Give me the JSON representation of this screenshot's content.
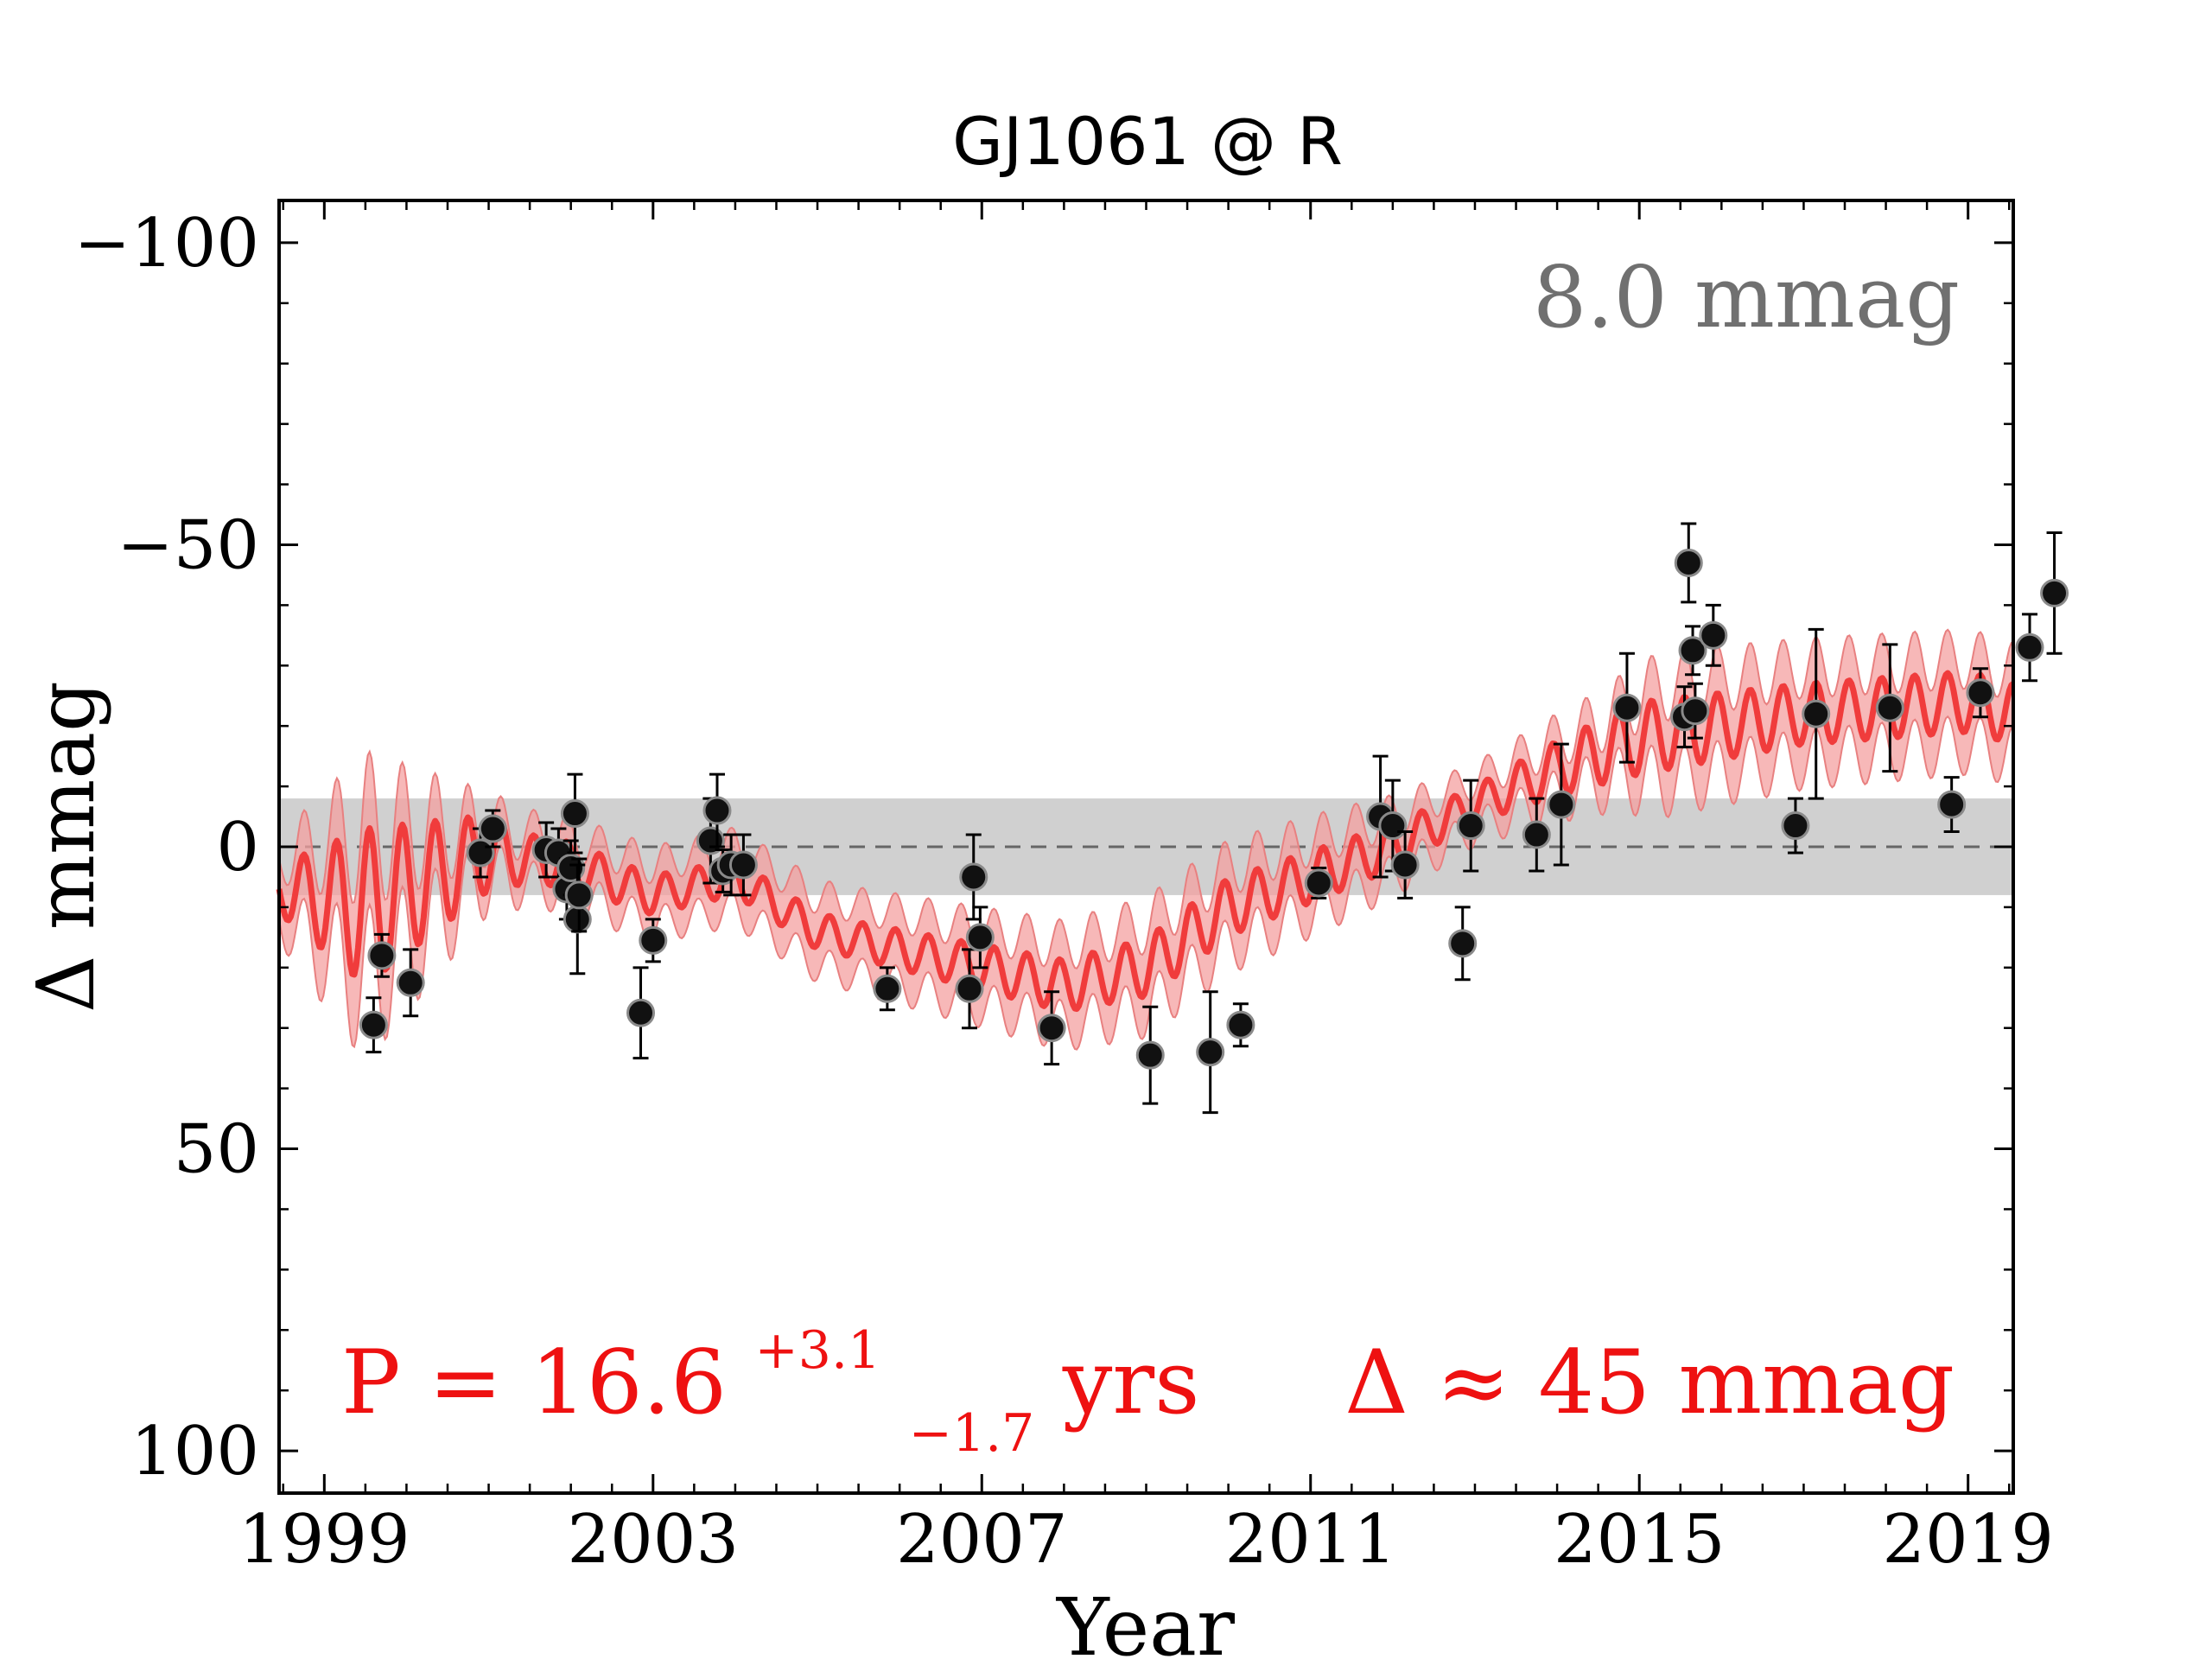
{
  "colors": {
    "model_line": "#f03c3c",
    "model_band": "#f4a0a0",
    "model_band_edge": "#e88080",
    "noise_band": "#d0d0d0",
    "points": "#111111",
    "noise_label": "#707070",
    "annotation": "#ee1111"
  },
  "chart_data": {
    "type": "scatter",
    "title": "GJ1061 @ R",
    "xlabel": "Year",
    "ylabel": "Δ  mmag",
    "xlim": [
      1998.45,
      2019.55
    ],
    "ylim": [
      -107,
      107
    ],
    "y_inverted": true,
    "x_ticks": [
      1999,
      2003,
      2007,
      2011,
      2015,
      2019
    ],
    "x_tick_labels": [
      "1999",
      "2003",
      "2007",
      "2011",
      "2015",
      "2019"
    ],
    "y_ticks": [
      -100,
      -50,
      0,
      50,
      100
    ],
    "y_tick_labels": [
      "−100",
      "−50",
      "0",
      "50",
      "100"
    ],
    "noise_level": 8.0,
    "noise_label": "8.0 mmag",
    "period_label": {
      "main": "P = 16.6",
      "sup": "+3.1",
      "sub": "−1.7",
      "unit": " yrs"
    },
    "amplitude_label": "Δ ≈ 45 mmag",
    "model": {
      "trend_knots": [
        [
          1998.45,
          7
        ],
        [
          1999.5,
          10
        ],
        [
          2001.0,
          1
        ],
        [
          2002.0,
          3
        ],
        [
          2003.0,
          8
        ],
        [
          2004.0,
          5
        ],
        [
          2005.0,
          14
        ],
        [
          2006.0,
          17
        ],
        [
          2007.0,
          20
        ],
        [
          2008.0,
          23
        ],
        [
          2009.0,
          20
        ],
        [
          2010.0,
          10
        ],
        [
          2011.0,
          5
        ],
        [
          2012.0,
          0
        ],
        [
          2013.0,
          -7
        ],
        [
          2014.0,
          -13
        ],
        [
          2015.0,
          -18
        ],
        [
          2016.0,
          -20
        ],
        [
          2017.0,
          -22
        ],
        [
          2018.0,
          -23
        ],
        [
          2019.0,
          -24
        ],
        [
          2019.55,
          -22
        ]
      ],
      "wiggle_amplitude_knots": [
        [
          1998.45,
          4
        ],
        [
          1999.5,
          13
        ],
        [
          2001.5,
          4
        ],
        [
          2003.5,
          3
        ],
        [
          2005.5,
          3
        ],
        [
          2007.5,
          4
        ],
        [
          2009.5,
          5
        ],
        [
          2011.5,
          4
        ],
        [
          2013.0,
          3
        ],
        [
          2015.0,
          6
        ],
        [
          2017.0,
          5
        ],
        [
          2019.55,
          5
        ]
      ],
      "wiggle_period_years": 0.4,
      "band_halfwidth_knots": [
        [
          1998.45,
          5
        ],
        [
          1999.5,
          13
        ],
        [
          2001.0,
          4
        ],
        [
          2003.0,
          5
        ],
        [
          2006.0,
          6
        ],
        [
          2009.0,
          7
        ],
        [
          2011.0,
          6
        ],
        [
          2013.0,
          4
        ],
        [
          2014.5,
          5
        ],
        [
          2015.3,
          8
        ],
        [
          2019.55,
          7
        ]
      ]
    },
    "series": [
      {
        "points": [
          {
            "x": 1999.6,
            "y": 29.5,
            "err": 4.5
          },
          {
            "x": 1999.7,
            "y": 18.0,
            "err": 3.5
          },
          {
            "x": 2000.05,
            "y": 22.5,
            "err": 5.5
          },
          {
            "x": 2000.9,
            "y": 1.0,
            "err": 4.0
          },
          {
            "x": 2001.05,
            "y": -3.0,
            "err": 3.0
          },
          {
            "x": 2001.7,
            "y": 0.5,
            "err": 4.5
          },
          {
            "x": 2001.85,
            "y": 1.0,
            "err": 4.0
          },
          {
            "x": 2001.95,
            "y": 7.0,
            "err": 5.0
          },
          {
            "x": 2002.0,
            "y": 3.5,
            "err": 4.5
          },
          {
            "x": 2002.05,
            "y": -5.5,
            "err": 6.5
          },
          {
            "x": 2002.08,
            "y": 12.0,
            "err": 9.0
          },
          {
            "x": 2002.1,
            "y": 8.0,
            "err": 6.0
          },
          {
            "x": 2002.85,
            "y": 27.5,
            "err": 7.5
          },
          {
            "x": 2003.0,
            "y": 15.5,
            "err": 3.5
          },
          {
            "x": 2003.7,
            "y": -1.0,
            "err": 7.0
          },
          {
            "x": 2003.78,
            "y": -6.0,
            "err": 6.0
          },
          {
            "x": 2003.85,
            "y": 4.0,
            "err": 3.5
          },
          {
            "x": 2003.95,
            "y": 3.0,
            "err": 5.0
          },
          {
            "x": 2004.1,
            "y": 3.0,
            "err": 5.0
          },
          {
            "x": 2005.85,
            "y": 23.5,
            "err": 3.5
          },
          {
            "x": 2006.85,
            "y": 23.5,
            "err": 6.5
          },
          {
            "x": 2006.9,
            "y": 5.0,
            "err": 7.0
          },
          {
            "x": 2006.98,
            "y": 15.0,
            "err": 5.0
          },
          {
            "x": 2007.85,
            "y": 30.0,
            "err": 6.0
          },
          {
            "x": 2009.05,
            "y": 34.5,
            "err": 8.0
          },
          {
            "x": 2009.78,
            "y": 34.0,
            "err": 10.0
          },
          {
            "x": 2010.15,
            "y": 29.5,
            "err": 3.5
          },
          {
            "x": 2011.1,
            "y": 6.0,
            "err": 2.5
          },
          {
            "x": 2011.85,
            "y": -5.0,
            "err": 10.0
          },
          {
            "x": 2012.0,
            "y": -3.5,
            "err": 7.5
          },
          {
            "x": 2012.15,
            "y": 3.0,
            "err": 5.5
          },
          {
            "x": 2012.85,
            "y": 16.0,
            "err": 6.0
          },
          {
            "x": 2012.95,
            "y": -3.5,
            "err": 7.5
          },
          {
            "x": 2013.75,
            "y": -2.0,
            "err": 6.0
          },
          {
            "x": 2014.05,
            "y": -7.0,
            "err": 10.0
          },
          {
            "x": 2014.85,
            "y": -23.0,
            "err": 9.0
          },
          {
            "x": 2015.55,
            "y": -21.5,
            "err": 5.0
          },
          {
            "x": 2015.6,
            "y": -47.0,
            "err": 6.5
          },
          {
            "x": 2015.65,
            "y": -32.5,
            "err": 4.0
          },
          {
            "x": 2015.68,
            "y": -22.5,
            "err": 4.5
          },
          {
            "x": 2015.9,
            "y": -35.0,
            "err": 5.0
          },
          {
            "x": 2016.9,
            "y": -3.5,
            "err": 4.5
          },
          {
            "x": 2017.15,
            "y": -22.0,
            "err": 14.0
          },
          {
            "x": 2018.05,
            "y": -23.0,
            "err": 10.5
          },
          {
            "x": 2018.8,
            "y": -7.0,
            "err": 4.5
          },
          {
            "x": 2019.15,
            "y": -25.5,
            "err": 4.0
          },
          {
            "x": 2019.75,
            "y": -33.0,
            "err": 5.5
          },
          {
            "x": 2020.05,
            "y": -42.0,
            "err": 10.0
          }
        ]
      }
    ]
  }
}
